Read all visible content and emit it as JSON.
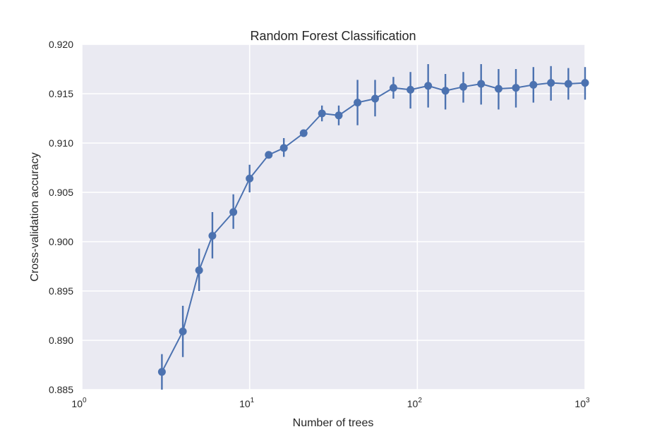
{
  "chart_data": {
    "type": "line",
    "title": "Random Forest Classification",
    "xlabel": "Number of trees",
    "ylabel": "Cross-validation accuracy",
    "xscale": "log",
    "xlim": [
      1,
      1000
    ],
    "ylim": [
      0.885,
      0.92
    ],
    "grid": true,
    "legend": "none",
    "colors": {
      "background": "#eaeaf2",
      "grid": "#ffffff",
      "series": "#4c72b0",
      "text": "#262626"
    },
    "x_ticks": [
      {
        "base": "10",
        "exp": "0"
      },
      {
        "base": "10",
        "exp": "1"
      },
      {
        "base": "10",
        "exp": "2"
      },
      {
        "base": "10",
        "exp": "3"
      }
    ],
    "y_ticks": [
      "0.885",
      "0.890",
      "0.895",
      "0.900",
      "0.905",
      "0.910",
      "0.915",
      "0.920"
    ],
    "series": [
      {
        "x": [
          3,
          4,
          5,
          6,
          8,
          10,
          13,
          16,
          21,
          27,
          34,
          44,
          56,
          72,
          91,
          116,
          147,
          188,
          240,
          305,
          387,
          492,
          626,
          795,
          1000
        ],
        "y": [
          0.8868,
          0.8909,
          0.8971,
          0.9006,
          0.903,
          0.9064,
          0.9088,
          0.9095,
          0.911,
          0.913,
          0.9128,
          0.9141,
          0.9145,
          0.9156,
          0.9154,
          0.9158,
          0.9153,
          0.9157,
          0.916,
          0.9155,
          0.9156,
          0.9159,
          0.9161,
          0.916,
          0.9161
        ],
        "ymin": [
          0.885,
          0.8883,
          0.895,
          0.8983,
          0.9013,
          0.905,
          0.9086,
          0.9086,
          0.9108,
          0.9122,
          0.9118,
          0.9118,
          0.9127,
          0.9145,
          0.9135,
          0.9136,
          0.9134,
          0.9141,
          0.9139,
          0.9134,
          0.9136,
          0.9141,
          0.9143,
          0.9144,
          0.9144
        ],
        "ymax": [
          0.8886,
          0.8935,
          0.8993,
          0.903,
          0.9048,
          0.9078,
          0.909,
          0.9105,
          0.9112,
          0.9138,
          0.9138,
          0.9164,
          0.9164,
          0.9167,
          0.9172,
          0.918,
          0.917,
          0.9172,
          0.918,
          0.9175,
          0.9175,
          0.9177,
          0.9178,
          0.9176,
          0.9177
        ]
      }
    ]
  }
}
